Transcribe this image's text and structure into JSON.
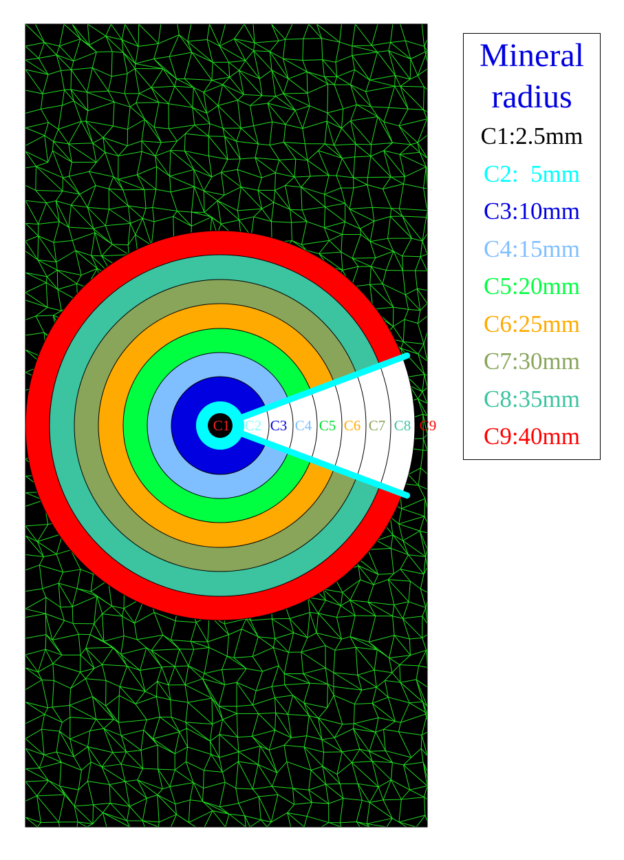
{
  "legend": {
    "title": "Mineral radius",
    "items": [
      "C1:2.5mm",
      "C2:  5mm",
      "C3:10mm",
      "C4:15mm",
      "C5:20mm",
      "C6:25mm",
      "C7:30mm",
      "C8:35mm",
      "C9:40mm"
    ]
  },
  "ring_labels": [
    "C1",
    "C2",
    "C3",
    "C4",
    "C5",
    "C6",
    "C7",
    "C8",
    "C9"
  ]
}
